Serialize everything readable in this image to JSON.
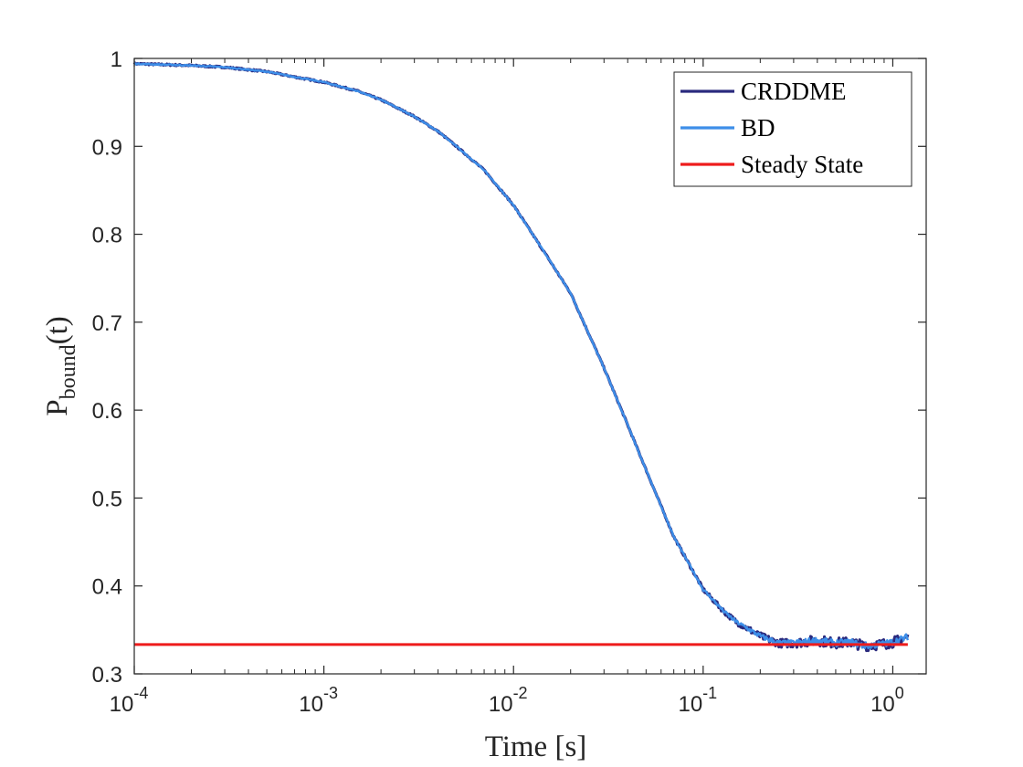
{
  "chart_data": {
    "type": "line",
    "xscale": "log",
    "xlim": [
      0.0001,
      1.5
    ],
    "ylim": [
      0.3,
      1.0
    ],
    "xticks": [
      {
        "value": 0.0001,
        "base": "10",
        "exp": "-4"
      },
      {
        "value": 0.001,
        "base": "10",
        "exp": "-3"
      },
      {
        "value": 0.01,
        "base": "10",
        "exp": "-2"
      },
      {
        "value": 0.1,
        "base": "10",
        "exp": "-1"
      },
      {
        "value": 1,
        "base": "10",
        "exp": "0"
      }
    ],
    "yticks": [
      {
        "value": 0.3,
        "label": "0.3"
      },
      {
        "value": 0.4,
        "label": "0.4"
      },
      {
        "value": 0.5,
        "label": "0.5"
      },
      {
        "value": 0.6,
        "label": "0.6"
      },
      {
        "value": 0.7,
        "label": "0.7"
      },
      {
        "value": 0.8,
        "label": "0.8"
      },
      {
        "value": 0.9,
        "label": "0.9"
      },
      {
        "value": 1.0,
        "label": "1"
      }
    ],
    "xlabel": "Time [s]",
    "ylabel": {
      "main": "P",
      "subscript": "bound",
      "suffix": "(t)"
    },
    "grid": false,
    "legend_position": "top-right",
    "series": [
      {
        "name": "CRDDME",
        "color": "#2a2a7e",
        "noise": 0.006,
        "x": [
          0.0001,
          0.0002,
          0.0003,
          0.0005,
          0.0007,
          0.001,
          0.0015,
          0.002,
          0.003,
          0.004,
          0.005,
          0.007,
          0.01,
          0.015,
          0.02,
          0.03,
          0.04,
          0.05,
          0.07,
          0.1,
          0.13,
          0.15,
          0.2,
          0.25,
          0.3,
          0.4,
          0.5,
          0.6,
          0.7,
          0.8,
          0.9,
          1.0,
          1.1,
          1.2
        ],
        "y": [
          0.994,
          0.992,
          0.99,
          0.985,
          0.979,
          0.973,
          0.963,
          0.953,
          0.934,
          0.917,
          0.9,
          0.873,
          0.833,
          0.775,
          0.733,
          0.648,
          0.583,
          0.532,
          0.456,
          0.396,
          0.37,
          0.359,
          0.343,
          0.335,
          0.335,
          0.338,
          0.335,
          0.336,
          0.332,
          0.333,
          0.334,
          0.336,
          0.339,
          0.342
        ]
      },
      {
        "name": "BD",
        "color": "#3d8ee8",
        "noise": 0.004,
        "x": [
          0.0001,
          0.0002,
          0.0003,
          0.0005,
          0.0007,
          0.001,
          0.0015,
          0.002,
          0.003,
          0.004,
          0.005,
          0.007,
          0.01,
          0.015,
          0.02,
          0.03,
          0.04,
          0.05,
          0.07,
          0.1,
          0.13,
          0.15,
          0.2,
          0.25,
          0.3,
          0.4,
          0.5,
          0.6,
          0.7,
          0.8,
          0.9,
          1.0,
          1.1,
          1.2
        ],
        "y": [
          0.994,
          0.992,
          0.99,
          0.985,
          0.979,
          0.973,
          0.963,
          0.953,
          0.934,
          0.917,
          0.9,
          0.873,
          0.833,
          0.775,
          0.733,
          0.648,
          0.583,
          0.532,
          0.456,
          0.396,
          0.37,
          0.359,
          0.343,
          0.335,
          0.335,
          0.338,
          0.335,
          0.336,
          0.332,
          0.333,
          0.334,
          0.336,
          0.339,
          0.342
        ]
      },
      {
        "name": "Steady State",
        "color": "#ee1c1c",
        "noise": 0,
        "x": [
          0.0001,
          1.2
        ],
        "y": [
          0.3333,
          0.3333
        ]
      }
    ]
  }
}
